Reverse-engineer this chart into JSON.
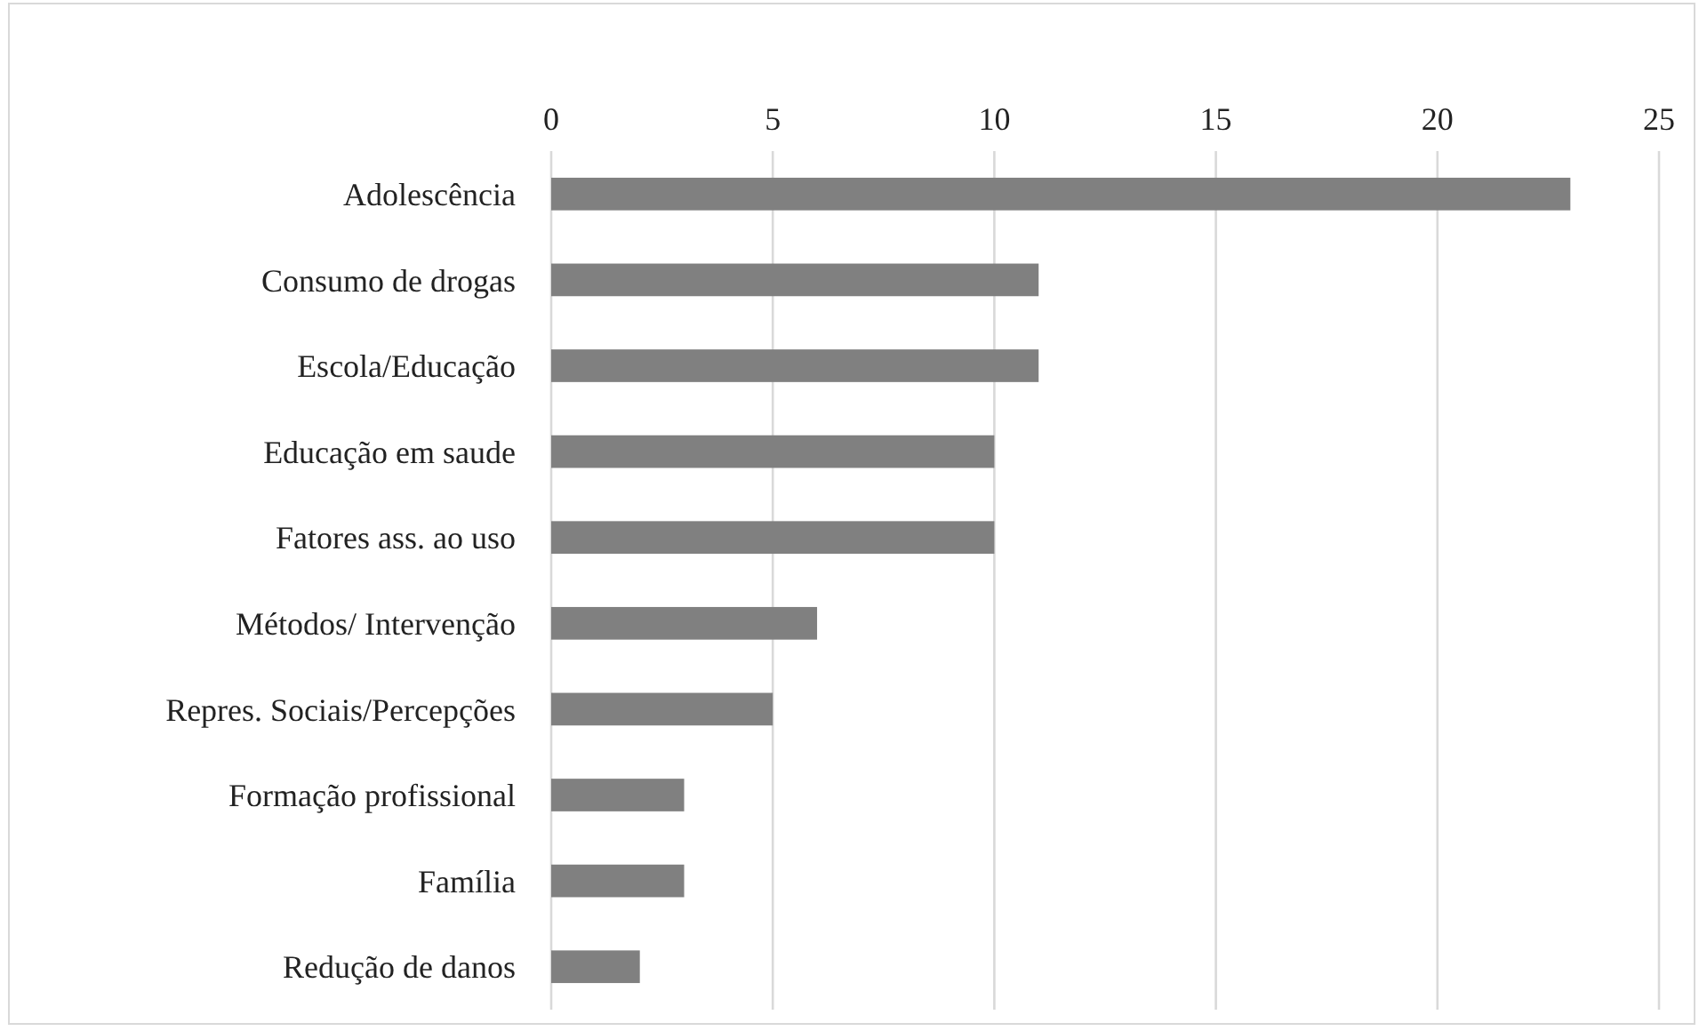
{
  "chart_data": {
    "type": "bar",
    "orientation": "horizontal",
    "categories": [
      "Adolescência",
      "Consumo de drogas",
      "Escola/Educação",
      "Educação em saude",
      "Fatores ass. ao uso",
      "Métodos/ Intervenção",
      "Repres. Sociais/Percepções",
      "Formação profissional",
      "Família",
      "Redução de danos"
    ],
    "values": [
      23,
      11,
      11,
      10,
      10,
      6,
      5,
      3,
      3,
      2
    ],
    "color": "#808080",
    "xlim": [
      0,
      25
    ],
    "xticks": [
      0,
      5,
      10,
      15,
      20,
      25
    ],
    "grid": "x"
  }
}
